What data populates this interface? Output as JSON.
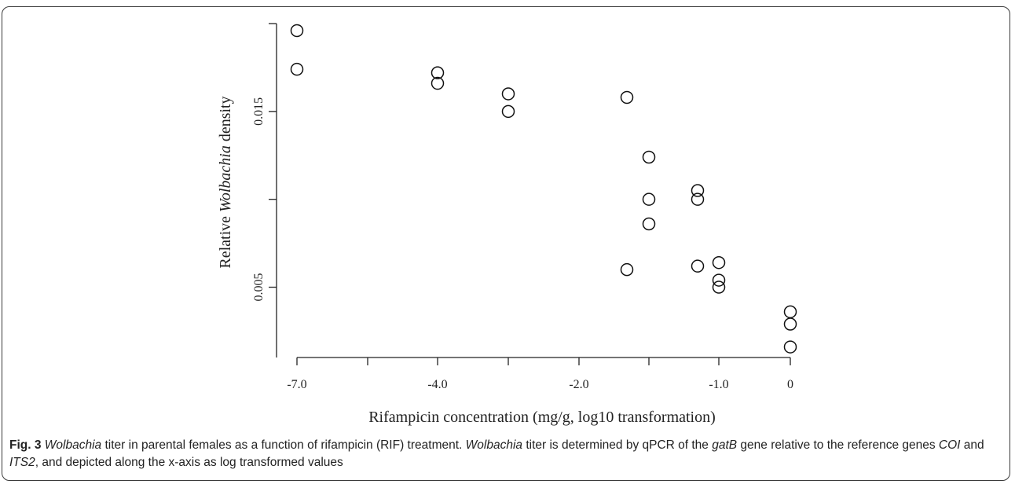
{
  "chart_data": {
    "type": "scatter",
    "xlabel": "Rifampicin concentration (mg/g, log10 transformation)",
    "ylabel_parts": [
      "Relative ",
      "Wolbachia",
      " density"
    ],
    "x_tick_labels": [
      "-7.0",
      "-4.0",
      "-2.0",
      "-1.0",
      "0"
    ],
    "y_ticks": [
      0.005,
      0.01,
      0.015
    ],
    "y_tick_labels": [
      "0.005",
      "",
      "0.015"
    ],
    "ylim": [
      0.001,
      0.02
    ],
    "points": [
      {
        "x": "-7.0",
        "y": 0.0196
      },
      {
        "x": "-7.0",
        "y": 0.0174
      },
      {
        "x": "-4.0",
        "y": 0.0172
      },
      {
        "x": "-4.0",
        "y": 0.0166
      },
      {
        "x": "-3.0",
        "y": 0.016
      },
      {
        "x": "-3.0",
        "y": 0.015
      },
      {
        "x": "-1.7",
        "y": 0.0158
      },
      {
        "x": "-1.7",
        "y": 0.006
      },
      {
        "x": "-1.5",
        "y": 0.0124
      },
      {
        "x": "-1.5",
        "y": 0.01
      },
      {
        "x": "-1.5",
        "y": 0.0086
      },
      {
        "x": "-1.2",
        "y": 0.0105
      },
      {
        "x": "-1.2",
        "y": 0.01
      },
      {
        "x": "-1.2",
        "y": 0.0062
      },
      {
        "x": "-1.0",
        "y": 0.0064
      },
      {
        "x": "-1.0",
        "y": 0.0054
      },
      {
        "x": "-1.0",
        "y": 0.005
      },
      {
        "x": "0",
        "y": 0.0036
      },
      {
        "x": "0",
        "y": 0.0029
      },
      {
        "x": "0",
        "y": 0.0016
      }
    ]
  },
  "caption": {
    "fig_label": "Fig. 3",
    "segments": [
      {
        "t": "Wolbachia",
        "i": true
      },
      {
        "t": " titer in parental females as a function of rifampicin (RIF) treatment. ",
        "i": false
      },
      {
        "t": "Wolbachia",
        "i": true
      },
      {
        "t": " titer is determined by qPCR of the ",
        "i": false
      },
      {
        "t": "gatB",
        "i": true
      },
      {
        "t": " gene relative to the reference genes ",
        "i": false
      },
      {
        "t": "COI",
        "i": true
      },
      {
        "t": " and ",
        "i": false
      },
      {
        "t": "ITS2",
        "i": true
      },
      {
        "t": ", and depicted along the x-axis as log transformed values",
        "i": false
      }
    ]
  }
}
